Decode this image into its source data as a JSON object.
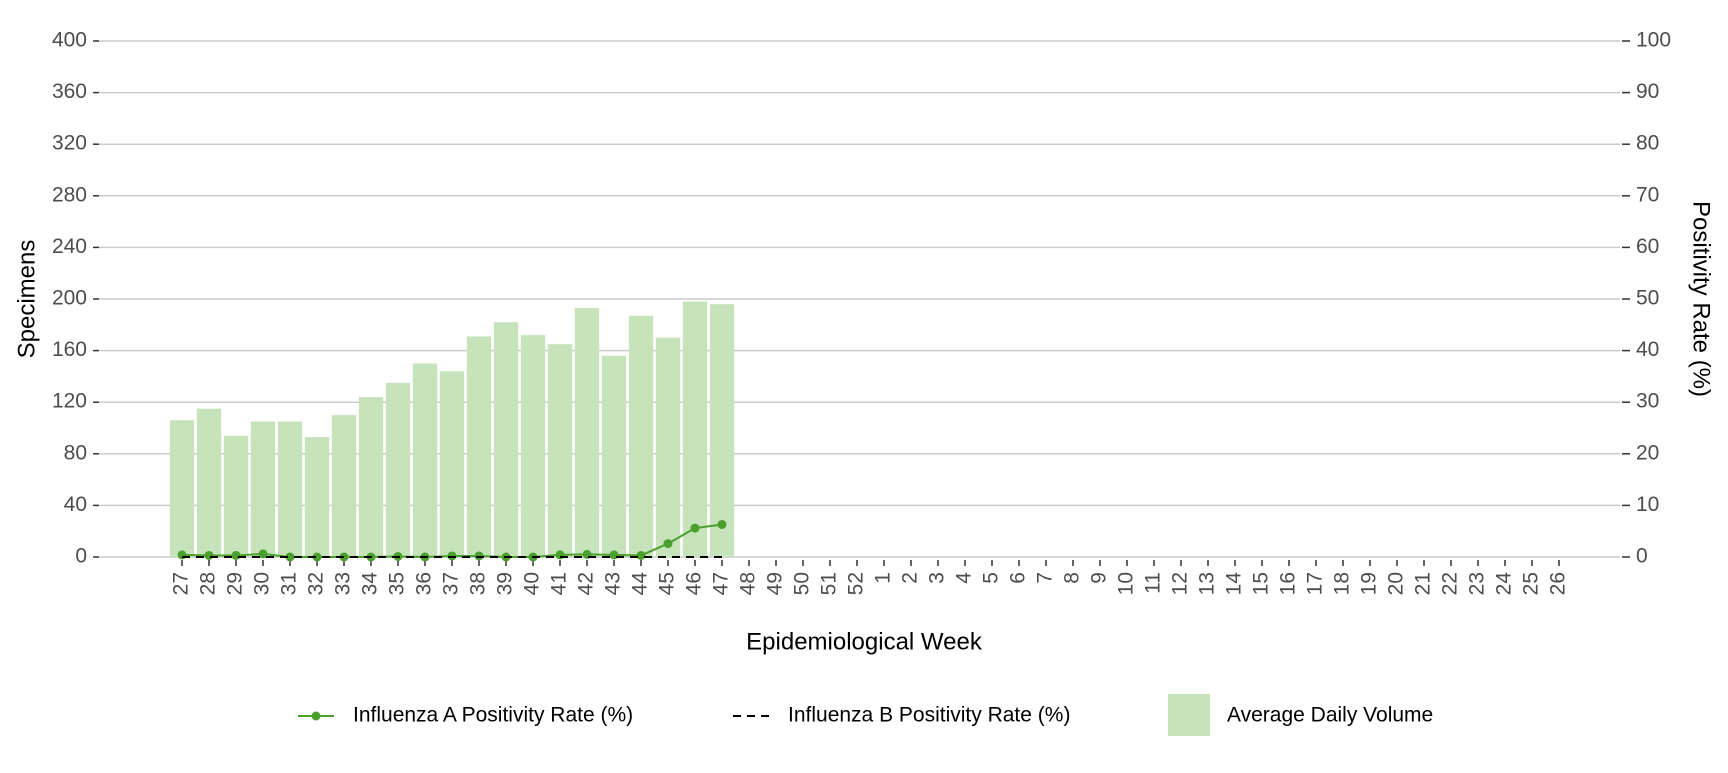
{
  "chart_data": {
    "type": "bar",
    "xlabel": "Epidemiological Week",
    "ylabel": "Specimens",
    "y2label": "Positivity Rate (%)",
    "categories": [
      "27",
      "28",
      "29",
      "30",
      "31",
      "32",
      "33",
      "34",
      "35",
      "36",
      "37",
      "38",
      "39",
      "40",
      "41",
      "42",
      "43",
      "44",
      "45",
      "46",
      "47",
      "48",
      "49",
      "50",
      "51",
      "52",
      "1",
      "2",
      "3",
      "4",
      "5",
      "6",
      "7",
      "8",
      "9",
      "10",
      "11",
      "12",
      "13",
      "14",
      "15",
      "16",
      "17",
      "18",
      "19",
      "20",
      "21",
      "22",
      "23",
      "24",
      "25",
      "26"
    ],
    "ylim": [
      0,
      400
    ],
    "yticks": [
      0,
      40,
      80,
      120,
      160,
      200,
      240,
      280,
      320,
      360,
      400
    ],
    "y2lim": [
      0,
      100
    ],
    "y2ticks": [
      0,
      10,
      20,
      30,
      40,
      50,
      60,
      70,
      80,
      90,
      100
    ],
    "grid": true,
    "legend": "bottom",
    "series": [
      {
        "name": "Influenza A Positivity Rate (%)",
        "type": "line",
        "axis": "y2",
        "color": "#4aa02c",
        "markers": true,
        "values": [
          0.4,
          0.3,
          0.3,
          0.6,
          0,
          0,
          0,
          0,
          0.1,
          0,
          0.2,
          0.2,
          0,
          0,
          0.4,
          0.5,
          0.4,
          0.3,
          2.6,
          5.6,
          6.3,
          null,
          null,
          null,
          null,
          null,
          null,
          null,
          null,
          null,
          null,
          null,
          null,
          null,
          null,
          null,
          null,
          null,
          null,
          null,
          null,
          null,
          null,
          null,
          null,
          null,
          null,
          null,
          null,
          null,
          null,
          null
        ]
      },
      {
        "name": "Influenza B Positivity Rate (%)",
        "type": "line",
        "axis": "y2",
        "color": "#000000",
        "line_style": "dashed",
        "values": [
          0,
          0,
          0,
          0,
          0,
          0,
          0,
          0,
          0,
          0,
          0,
          0,
          0,
          0,
          0,
          0,
          0,
          0,
          0,
          0,
          0,
          null,
          null,
          null,
          null,
          null,
          null,
          null,
          null,
          null,
          null,
          null,
          null,
          null,
          null,
          null,
          null,
          null,
          null,
          null,
          null,
          null,
          null,
          null,
          null,
          null,
          null,
          null,
          null,
          null,
          null,
          null
        ]
      },
      {
        "name": "Average Daily Volume",
        "type": "bar",
        "axis": "y",
        "color": "#c7e3bb",
        "values": [
          106,
          115,
          94,
          105,
          105,
          93,
          110,
          124,
          135,
          150,
          144,
          171,
          182,
          172,
          165,
          193,
          156,
          187,
          170,
          198,
          196,
          null,
          null,
          null,
          null,
          null,
          null,
          null,
          null,
          null,
          null,
          null,
          null,
          null,
          null,
          null,
          null,
          null,
          null,
          null,
          null,
          null,
          null,
          null,
          null,
          null,
          null,
          null,
          null,
          null,
          null,
          null
        ]
      }
    ]
  }
}
